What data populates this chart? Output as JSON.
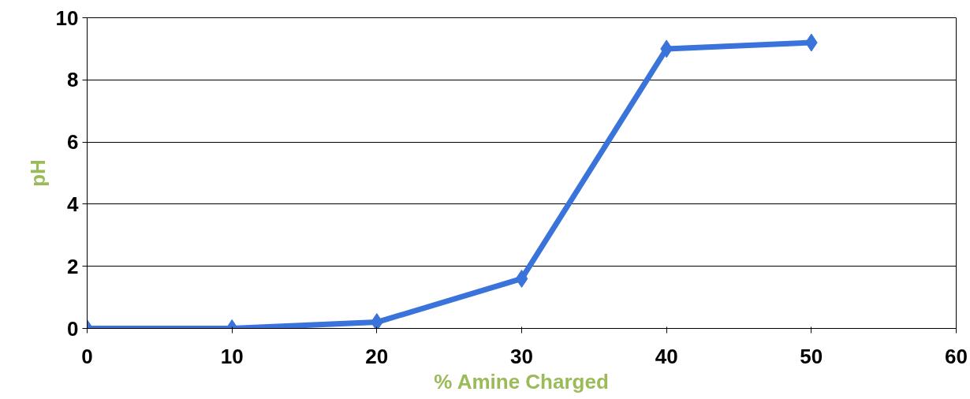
{
  "chart_data": {
    "type": "line",
    "xlabel": "% Amine Charged",
    "ylabel": "pH",
    "x": [
      0,
      10,
      20,
      30,
      40,
      50
    ],
    "series": [
      {
        "color": "#3a73d9",
        "values": [
          0,
          0,
          0.2,
          1.6,
          9.0,
          9.2
        ]
      }
    ],
    "xlim": [
      0,
      60
    ],
    "xticks": [
      0,
      10,
      20,
      30,
      40,
      50,
      60
    ],
    "ylim": [
      0,
      10
    ],
    "yticks": [
      0,
      2,
      4,
      6,
      8,
      10
    ],
    "grid": "y",
    "marker": "diamond",
    "line_style": "solid"
  }
}
